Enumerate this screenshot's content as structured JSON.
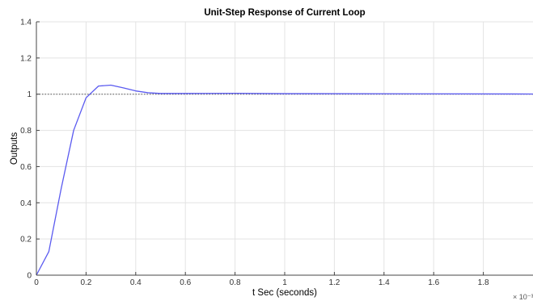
{
  "chart_data": {
    "type": "line",
    "title": "Unit-Step Response of Current Loop",
    "xlabel": "t Sec (seconds)",
    "ylabel": "Outputs",
    "x_exponent_label": "× 10⁻³",
    "xlim": [
      0,
      2
    ],
    "ylim": [
      0,
      1.4
    ],
    "xticks": [
      "0",
      "0.2",
      "0.4",
      "0.6",
      "0.8",
      "1",
      "1.2",
      "1.4",
      "1.6",
      "1.8"
    ],
    "yticks": [
      "0",
      "0.2",
      "0.4",
      "0.6",
      "0.8",
      "1",
      "1.2",
      "1.4"
    ],
    "grid": true,
    "reference_line": {
      "y": 1,
      "style": "dotted",
      "color": "#555555"
    },
    "series": [
      {
        "color": "#5b5bf0",
        "x": [
          0,
          0.05,
          0.1,
          0.15,
          0.2,
          0.25,
          0.3,
          0.35,
          0.4,
          0.45,
          0.5,
          0.6,
          0.8,
          1.0,
          1.5,
          2.0
        ],
        "y": [
          0,
          0.13,
          0.48,
          0.8,
          0.98,
          1.045,
          1.05,
          1.035,
          1.018,
          1.008,
          1.004,
          1.004,
          1.005,
          1.003,
          1.002,
          1.001
        ]
      }
    ]
  }
}
